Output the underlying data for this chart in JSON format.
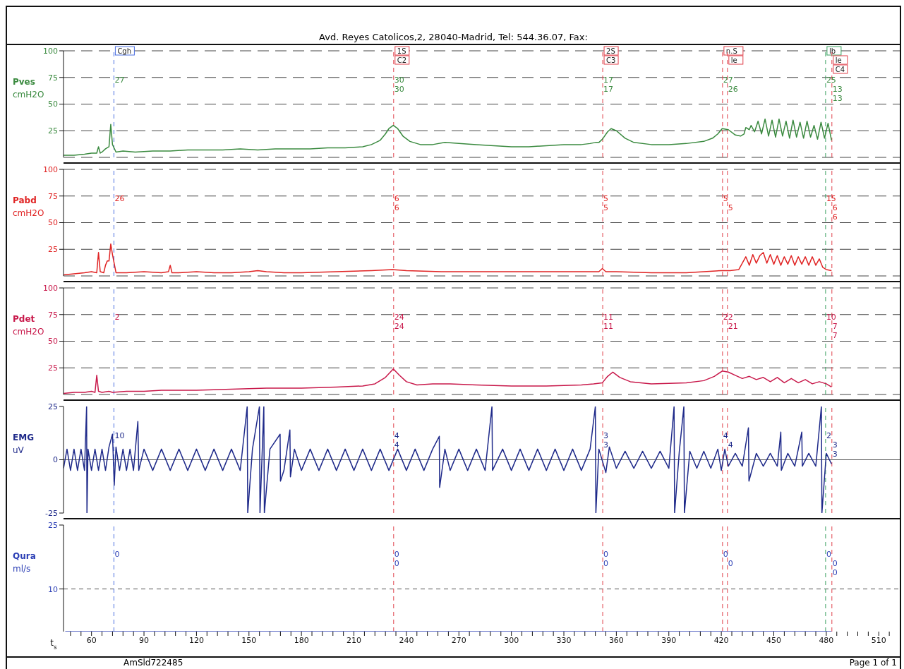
{
  "chart_data": [
    {
      "type": "line",
      "subtitle": "Avd. Reyes Catolicos,2, 28040-Madrid, Tel: 544.36.07, Fax:",
      "ylabel": "Pves cmH2O",
      "xlim": [
        44,
        522
      ],
      "ylim": [
        0,
        100
      ],
      "yticks": [
        25,
        50,
        75,
        100
      ],
      "grid": "y",
      "tick_labels": "y",
      "series": [
        {
          "color": "#3a8a3f",
          "x": [
            44,
            50,
            56,
            60,
            63,
            64,
            65,
            66,
            68,
            70,
            71,
            72,
            74,
            78,
            85,
            95,
            105,
            115,
            125,
            135,
            145,
            155,
            165,
            175,
            185,
            195,
            205,
            215,
            220,
            225,
            228,
            230,
            232.5,
            235,
            238,
            242,
            248,
            255,
            262,
            270,
            280,
            290,
            300,
            310,
            320,
            330,
            340,
            345,
            348,
            350,
            352,
            355,
            357,
            360,
            365,
            370,
            380,
            390,
            400,
            410,
            415,
            418,
            420.5,
            424,
            428,
            431,
            433,
            434,
            436,
            437,
            439,
            441,
            443,
            445,
            447,
            449,
            451,
            453,
            455,
            457,
            459,
            461,
            463,
            465,
            467,
            469,
            471,
            473,
            475,
            477,
            479,
            481,
            483
          ],
          "values": [
            2,
            2,
            3,
            4,
            4,
            10,
            4,
            5,
            8,
            10,
            31,
            12,
            5,
            6,
            5,
            6,
            6,
            7,
            7,
            7,
            8,
            7,
            8,
            8,
            8,
            9,
            9,
            10,
            12,
            16,
            22,
            27,
            30,
            27,
            20,
            15,
            12,
            12,
            14,
            13,
            12,
            11,
            10,
            10,
            11,
            12,
            12,
            13,
            14,
            14,
            17,
            24,
            27,
            25,
            18,
            14,
            12,
            12,
            13,
            15,
            18,
            22,
            27,
            26,
            21,
            20,
            22,
            28,
            26,
            30,
            24,
            34,
            22,
            36,
            20,
            35,
            19,
            36,
            20,
            34,
            18,
            35,
            19,
            33,
            18,
            34,
            19,
            30,
            17,
            33,
            18,
            32,
            16
          ]
        }
      ],
      "ref_lines": [
        {
          "axis": "x",
          "value": 72.8,
          "label": "Cgh",
          "color": "#4a6ee0",
          "line_style": "dashed"
        },
        {
          "axis": "x",
          "value": 232.7,
          "label": "1S\nC2",
          "color": "#e0404a",
          "line_style": "dashed"
        },
        {
          "axis": "x",
          "value": 352.2,
          "label": "2S\nC3",
          "color": "#e0404a",
          "line_style": "dashed"
        },
        {
          "axis": "x",
          "value": 420.7,
          "label": "n.S",
          "color": "#e0404a",
          "line_style": "dashed"
        },
        {
          "axis": "x",
          "value": 423.5,
          "label": "le",
          "color": "#e0404a",
          "line_style": "dashed"
        },
        {
          "axis": "x",
          "value": 479.6,
          "label": "lb",
          "color": "#3aa060",
          "line_style": "dashed"
        },
        {
          "axis": "x",
          "value": 483.2,
          "label": "le\nC4",
          "color": "#e0404a",
          "line_style": "dashed"
        }
      ],
      "annotations": [
        {
          "text": "27",
          "x": 72.8
        },
        {
          "text": "30",
          "x": 232.7
        },
        {
          "text": "30",
          "x": 232.7
        },
        {
          "text": "17",
          "x": 352.2
        },
        {
          "text": "17",
          "x": 352.2
        },
        {
          "text": "27",
          "x": 420.7
        },
        {
          "text": "26",
          "x": 423.5
        },
        {
          "text": "25",
          "x": 479.6
        },
        {
          "text": "13",
          "x": 483.2
        },
        {
          "text": "13",
          "x": 483.2
        }
      ]
    },
    {
      "type": "line",
      "ylabel": "Pabd cmH2O",
      "xlim": [
        44,
        522
      ],
      "ylim": [
        0,
        100
      ],
      "yticks": [
        25,
        50,
        75,
        100
      ],
      "grid": "y",
      "tick_labels": "y",
      "series": [
        {
          "color": "#e02424",
          "x": [
            44,
            50,
            56,
            60,
            63,
            64,
            65,
            67,
            68,
            69,
            70,
            71,
            72,
            74,
            80,
            90,
            100,
            104,
            105,
            106,
            110,
            120,
            130,
            140,
            150,
            155,
            160,
            170,
            180,
            200,
            220,
            232,
            240,
            260,
            280,
            300,
            320,
            340,
            350,
            352,
            354,
            360,
            380,
            400,
            410,
            420,
            425,
            430,
            432,
            434,
            436,
            438,
            440,
            442,
            444,
            446,
            448,
            450,
            452,
            454,
            456,
            458,
            460,
            462,
            464,
            466,
            468,
            470,
            472,
            474,
            476,
            478,
            480,
            483
          ],
          "values": [
            1,
            2,
            3,
            4,
            3,
            22,
            4,
            3,
            10,
            14,
            14,
            30,
            20,
            3,
            3,
            4,
            3,
            4,
            10,
            3,
            3,
            4,
            3,
            3,
            4,
            5,
            4,
            3,
            3,
            4,
            5,
            6,
            5,
            4,
            4,
            4,
            4,
            4,
            4,
            7,
            4,
            4,
            3,
            3,
            4,
            5,
            5,
            6,
            12,
            18,
            10,
            20,
            12,
            19,
            22,
            12,
            20,
            11,
            19,
            10,
            18,
            11,
            19,
            10,
            18,
            11,
            18,
            10,
            18,
            10,
            16,
            8,
            6,
            5
          ]
        }
      ],
      "ref_lines": [
        {
          "axis": "x",
          "value": 72.8,
          "color": "#4a6ee0",
          "line_style": "dashed"
        },
        {
          "axis": "x",
          "value": 232.7,
          "color": "#e0404a",
          "line_style": "dashed"
        },
        {
          "axis": "x",
          "value": 352.2,
          "color": "#e0404a",
          "line_style": "dashed"
        },
        {
          "axis": "x",
          "value": 420.7,
          "color": "#e0404a",
          "line_style": "dashed"
        },
        {
          "axis": "x",
          "value": 423.5,
          "color": "#e0404a",
          "line_style": "dashed"
        },
        {
          "axis": "x",
          "value": 479.6,
          "color": "#3aa060",
          "line_style": "dashed"
        },
        {
          "axis": "x",
          "value": 483.2,
          "color": "#e0404a",
          "line_style": "dashed"
        }
      ],
      "annotations": [
        {
          "text": "26",
          "x": 72.8
        },
        {
          "text": "6",
          "x": 232.7
        },
        {
          "text": "6",
          "x": 232.7
        },
        {
          "text": "5",
          "x": 352.2
        },
        {
          "text": "5",
          "x": 352.2
        },
        {
          "text": "5",
          "x": 420.7
        },
        {
          "text": "5",
          "x": 423.5
        },
        {
          "text": "15",
          "x": 479.6
        },
        {
          "text": "6",
          "x": 483.2
        },
        {
          "text": "6",
          "x": 483.2
        }
      ]
    },
    {
      "type": "line",
      "ylabel": "Pdet cmH2O",
      "xlim": [
        44,
        522
      ],
      "ylim": [
        0,
        100
      ],
      "yticks": [
        25,
        50,
        75,
        100
      ],
      "grid": "y",
      "tick_labels": "y",
      "series": [
        {
          "color": "#c8184a",
          "x": [
            44,
            50,
            56,
            60,
            62,
            63,
            64,
            66,
            70,
            72,
            80,
            90,
            100,
            110,
            120,
            140,
            160,
            180,
            200,
            215,
            222,
            228,
            232.5,
            236,
            240,
            246,
            255,
            265,
            280,
            300,
            320,
            340,
            347,
            352,
            355,
            358,
            362,
            368,
            380,
            400,
            410,
            416,
            420.5,
            424,
            428,
            432,
            436,
            440,
            444,
            448,
            452,
            456,
            460,
            464,
            468,
            472,
            476,
            480,
            483
          ],
          "values": [
            1,
            2,
            2,
            3,
            2,
            18,
            3,
            2,
            3,
            2,
            3,
            3,
            4,
            4,
            4,
            5,
            6,
            6,
            7,
            8,
            10,
            16,
            24,
            18,
            12,
            9,
            10,
            10,
            9,
            8,
            8,
            9,
            10,
            11,
            17,
            21,
            16,
            12,
            10,
            11,
            13,
            17,
            22,
            21,
            18,
            15,
            17,
            14,
            16,
            12,
            16,
            11,
            15,
            11,
            14,
            10,
            12,
            10,
            7
          ]
        }
      ],
      "ref_lines": [
        {
          "axis": "x",
          "value": 72.8,
          "color": "#4a6ee0",
          "line_style": "dashed"
        },
        {
          "axis": "x",
          "value": 232.7,
          "color": "#e0404a",
          "line_style": "dashed"
        },
        {
          "axis": "x",
          "value": 352.2,
          "color": "#e0404a",
          "line_style": "dashed"
        },
        {
          "axis": "x",
          "value": 420.7,
          "color": "#e0404a",
          "line_style": "dashed"
        },
        {
          "axis": "x",
          "value": 423.5,
          "color": "#e0404a",
          "line_style": "dashed"
        },
        {
          "axis": "x",
          "value": 479.6,
          "color": "#3aa060",
          "line_style": "dashed"
        },
        {
          "axis": "x",
          "value": 483.2,
          "color": "#e0404a",
          "line_style": "dashed"
        }
      ],
      "annotations": [
        {
          "text": "2",
          "x": 72.8
        },
        {
          "text": "24",
          "x": 232.7
        },
        {
          "text": "24",
          "x": 232.7
        },
        {
          "text": "11",
          "x": 352.2
        },
        {
          "text": "11",
          "x": 352.2
        },
        {
          "text": "22",
          "x": 420.7
        },
        {
          "text": "21",
          "x": 423.5
        },
        {
          "text": "10",
          "x": 479.6
        },
        {
          "text": "7",
          "x": 483.2
        },
        {
          "text": "7",
          "x": 483.2
        }
      ]
    },
    {
      "type": "line",
      "ylabel": "EMG uV",
      "xlim": [
        44,
        522
      ],
      "ylim": [
        -25,
        25
      ],
      "yticks": [
        -25,
        0,
        25
      ],
      "tick_labels": "y",
      "series": [
        {
          "color": "#1f2a8a",
          "x": [
            44,
            46,
            48,
            50,
            52,
            54,
            56,
            57.2,
            57.4,
            58,
            60,
            62,
            64,
            66,
            68,
            70,
            72,
            73,
            74,
            76,
            78,
            80,
            82,
            84,
            86.5,
            87,
            90,
            95,
            100,
            105,
            110,
            115,
            120,
            125,
            130,
            135,
            140,
            145,
            149,
            149.3,
            152,
            156,
            156.3,
            158.5,
            158.8,
            162,
            167.8,
            168,
            170,
            173.4,
            173.7,
            176,
            180,
            185,
            190,
            195,
            200,
            205,
            210,
            215,
            220,
            225,
            230,
            235,
            240,
            245,
            250,
            255,
            258.8,
            259,
            262,
            265,
            270,
            275,
            280,
            285,
            288.9,
            289.2,
            295,
            300,
            305,
            310,
            315,
            320,
            325,
            330,
            335,
            340,
            345,
            348,
            348.3,
            350,
            354,
            356,
            360,
            365,
            370,
            375,
            380,
            385,
            390,
            393,
            393.3,
            396,
            398.6,
            398.9,
            402,
            406,
            410,
            414,
            418,
            420,
            422,
            424,
            428,
            432,
            435.5,
            435.8,
            440,
            444,
            448,
            452,
            454,
            454.3,
            458,
            462,
            466,
            466.3,
            470,
            474,
            477.2,
            477.5,
            480,
            483
          ],
          "values": [
            -4,
            5,
            -5,
            5,
            -5,
            5,
            -5,
            25,
            -25,
            5,
            -5,
            5,
            -5,
            5,
            -5,
            6,
            12,
            -12,
            6,
            -5,
            5,
            -5,
            5,
            -5,
            18,
            -5,
            5,
            -5,
            5,
            -5,
            5,
            -5,
            5,
            -5,
            5,
            -5,
            5,
            -5,
            25,
            -25,
            5,
            25,
            -25,
            25,
            -25,
            5,
            12,
            -10,
            -5,
            14,
            -8,
            5,
            -5,
            5,
            -5,
            5,
            -5,
            5,
            -5,
            5,
            -5,
            5,
            -5,
            5,
            -5,
            5,
            -5,
            5,
            11,
            -13,
            5,
            -5,
            5,
            -5,
            5,
            -5,
            25,
            -5,
            5,
            -5,
            5,
            -5,
            5,
            -5,
            5,
            -5,
            5,
            -5,
            5,
            25,
            -25,
            5,
            -6,
            6,
            -4,
            4,
            -4,
            4,
            -4,
            4,
            -4,
            25,
            -25,
            4,
            25,
            -25,
            4,
            -4,
            4,
            -4,
            5,
            -5,
            5,
            -3,
            3,
            -3,
            15,
            -10,
            3,
            -3,
            3,
            -3,
            13,
            -5,
            3,
            -3,
            13,
            -3,
            3,
            -3,
            25,
            -25,
            3,
            -2
          ]
        }
      ],
      "ref_lines": [
        {
          "axis": "y",
          "value": 0,
          "color": "#555555",
          "line_style": "solid"
        },
        {
          "axis": "x",
          "value": 72.8,
          "color": "#4a6ee0",
          "line_style": "dashed"
        },
        {
          "axis": "x",
          "value": 232.7,
          "color": "#e0404a",
          "line_style": "dashed"
        },
        {
          "axis": "x",
          "value": 352.2,
          "color": "#e0404a",
          "line_style": "dashed"
        },
        {
          "axis": "x",
          "value": 420.7,
          "color": "#e0404a",
          "line_style": "dashed"
        },
        {
          "axis": "x",
          "value": 423.5,
          "color": "#e0404a",
          "line_style": "dashed"
        },
        {
          "axis": "x",
          "value": 479.6,
          "color": "#3aa060",
          "line_style": "dashed"
        },
        {
          "axis": "x",
          "value": 483.2,
          "color": "#e0404a",
          "line_style": "dashed"
        }
      ],
      "annotations": [
        {
          "text": "10",
          "x": 72.8
        },
        {
          "text": "4",
          "x": 232.7
        },
        {
          "text": "4",
          "x": 232.7
        },
        {
          "text": "3",
          "x": 352.2
        },
        {
          "text": "3",
          "x": 352.2
        },
        {
          "text": "4",
          "x": 420.7
        },
        {
          "text": "4",
          "x": 423.5
        },
        {
          "text": "2",
          "x": 479.6
        },
        {
          "text": "3",
          "x": 483.2
        },
        {
          "text": "3",
          "x": 483.2
        }
      ]
    },
    {
      "type": "line",
      "ylabel": "Qura ml/s",
      "xlabel": "t$_{s}$",
      "xlim": [
        44,
        522
      ],
      "ylim": [
        0,
        25
      ],
      "yticks": [
        10,
        25
      ],
      "xticks": [
        {
          "value": 48,
          "label": null
        },
        {
          "value": 54,
          "label": null
        },
        60,
        {
          "value": 66,
          "label": null
        },
        {
          "value": 72,
          "label": null
        },
        {
          "value": 78,
          "label": null
        },
        {
          "value": 84,
          "label": null
        },
        90,
        {
          "value": 96,
          "label": null
        },
        {
          "value": 102,
          "label": null
        },
        {
          "value": 108,
          "label": null
        },
        {
          "value": 114,
          "label": null
        },
        120,
        {
          "value": 126,
          "label": null
        },
        {
          "value": 132,
          "label": null
        },
        {
          "value": 138,
          "label": null
        },
        {
          "value": 144,
          "label": null
        },
        150,
        {
          "value": 156,
          "label": null
        },
        {
          "value": 162,
          "label": null
        },
        {
          "value": 168,
          "label": null
        },
        {
          "value": 174,
          "label": null
        },
        180,
        {
          "value": 186,
          "label": null
        },
        {
          "value": 192,
          "label": null
        },
        {
          "value": 198,
          "label": null
        },
        {
          "value": 204,
          "label": null
        },
        210,
        {
          "value": 216,
          "label": null
        },
        {
          "value": 222,
          "label": null
        },
        {
          "value": 228,
          "label": null
        },
        {
          "value": 234,
          "label": null
        },
        240,
        {
          "value": 246,
          "label": null
        },
        {
          "value": 252,
          "label": null
        },
        {
          "value": 258,
          "label": null
        },
        {
          "value": 264,
          "label": null
        },
        270,
        {
          "value": 276,
          "label": null
        },
        {
          "value": 282,
          "label": null
        },
        {
          "value": 288,
          "label": null
        },
        {
          "value": 294,
          "label": null
        },
        300,
        {
          "value": 306,
          "label": null
        },
        {
          "value": 312,
          "label": null
        },
        {
          "value": 318,
          "label": null
        },
        {
          "value": 324,
          "label": null
        },
        330,
        {
          "value": 336,
          "label": null
        },
        {
          "value": 342,
          "label": null
        },
        {
          "value": 348,
          "label": null
        },
        {
          "value": 354,
          "label": null
        },
        360,
        {
          "value": 366,
          "label": null
        },
        {
          "value": 372,
          "label": null
        },
        {
          "value": 378,
          "label": null
        },
        {
          "value": 384,
          "label": null
        },
        390,
        {
          "value": 396,
          "label": null
        },
        {
          "value": 402,
          "label": null
        },
        {
          "value": 408,
          "label": null
        },
        {
          "value": 414,
          "label": null
        },
        420,
        {
          "value": 426,
          "label": null
        },
        {
          "value": 432,
          "label": null
        },
        {
          "value": 438,
          "label": null
        },
        {
          "value": 444,
          "label": null
        },
        450,
        {
          "value": 456,
          "label": null
        },
        {
          "value": 462,
          "label": null
        },
        {
          "value": 468,
          "label": null
        },
        {
          "value": 474,
          "label": null
        },
        480,
        {
          "value": 486,
          "label": null
        },
        {
          "value": 492,
          "label": null
        },
        {
          "value": 498,
          "label": null
        },
        {
          "value": 504,
          "label": null
        },
        510,
        {
          "value": 516,
          "label": null
        }
      ],
      "series": [
        {
          "color": "#2c3fb5",
          "x": [
            45,
            483
          ],
          "values": [
            0,
            0
          ]
        }
      ],
      "ref_lines": [
        {
          "axis": "y",
          "value": 10,
          "color": "#555555",
          "line_style": "dashed"
        },
        {
          "axis": "x",
          "value": 72.8,
          "color": "#4a6ee0",
          "line_style": "dashed"
        },
        {
          "axis": "x",
          "value": 232.7,
          "color": "#e0404a",
          "line_style": "dashed"
        },
        {
          "axis": "x",
          "value": 352.2,
          "color": "#e0404a",
          "line_style": "dashed"
        },
        {
          "axis": "x",
          "value": 420.7,
          "color": "#e0404a",
          "line_style": "dashed"
        },
        {
          "axis": "x",
          "value": 423.5,
          "color": "#e0404a",
          "line_style": "dashed"
        },
        {
          "axis": "x",
          "value": 479.6,
          "color": "#3aa060",
          "line_style": "dashed"
        },
        {
          "axis": "x",
          "value": 483.2,
          "color": "#e0404a",
          "line_style": "dashed"
        }
      ],
      "annotations": [
        {
          "text": "0",
          "x": 72.8
        },
        {
          "text": "0",
          "x": 232.7
        },
        {
          "text": "0",
          "x": 232.7
        },
        {
          "text": "0",
          "x": 352.2
        },
        {
          "text": "0",
          "x": 352.2
        },
        {
          "text": "0",
          "x": 420.7
        },
        {
          "text": "0",
          "x": 423.5
        },
        {
          "text": "0",
          "x": 479.6
        },
        {
          "text": "0",
          "x": 483.2
        },
        {
          "text": "0",
          "x": 483.2
        },
        "AmSld722485",
        "Page 1 of 1"
      ]
    }
  ]
}
